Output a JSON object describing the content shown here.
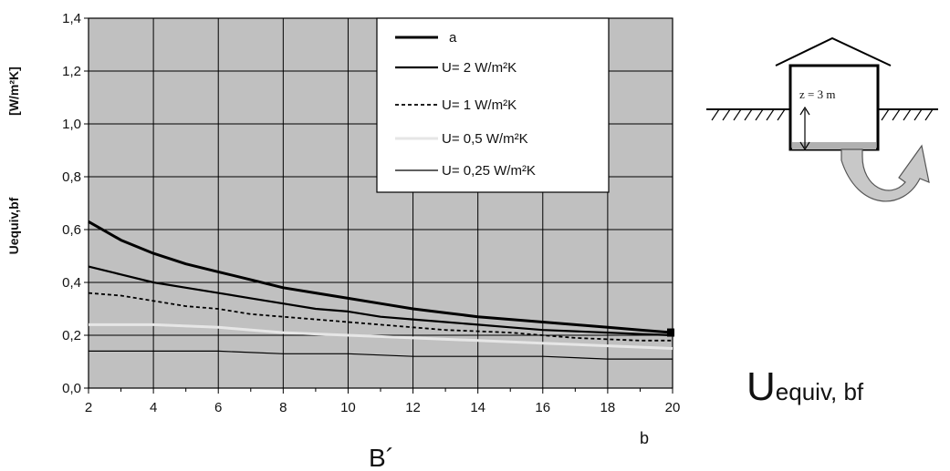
{
  "chart_data": {
    "type": "line",
    "ylabel_main": "Uequiv,bf",
    "ylabel_unit": "[W/m²K]",
    "xlabel": "B´",
    "x_axis_note": "b",
    "xlim": [
      2,
      20
    ],
    "ylim": [
      0,
      1.4
    ],
    "x_ticks": [
      "2",
      "4",
      "6",
      "8",
      "10",
      "12",
      "14",
      "16",
      "18",
      "20"
    ],
    "y_ticks": [
      "0,0",
      "0,2",
      "0,4",
      "0,6",
      "0,8",
      "1,0",
      "1,2",
      "1,4"
    ],
    "grid": true,
    "legend_position": "top-right",
    "series": [
      {
        "name": "a",
        "style": "solid-thick",
        "color": "#000000",
        "x": [
          2,
          3,
          4,
          5,
          6,
          7,
          8,
          9,
          10,
          11,
          12,
          13,
          14,
          15,
          16,
          17,
          18,
          19,
          20
        ],
        "y": [
          0.63,
          0.56,
          0.51,
          0.47,
          0.44,
          0.41,
          0.38,
          0.36,
          0.34,
          0.32,
          0.3,
          0.285,
          0.27,
          0.26,
          0.25,
          0.24,
          0.23,
          0.22,
          0.21
        ]
      },
      {
        "name": "U= 2 W/m²K",
        "style": "solid",
        "color": "#000000",
        "x": [
          2,
          3,
          4,
          5,
          6,
          7,
          8,
          9,
          10,
          11,
          12,
          13,
          14,
          15,
          16,
          17,
          18,
          19,
          20
        ],
        "y": [
          0.46,
          0.43,
          0.4,
          0.38,
          0.36,
          0.34,
          0.32,
          0.3,
          0.29,
          0.27,
          0.26,
          0.25,
          0.24,
          0.23,
          0.22,
          0.215,
          0.21,
          0.205,
          0.2
        ]
      },
      {
        "name": "U= 1 W/m²K",
        "style": "dotted",
        "color": "#000000",
        "x": [
          2,
          3,
          4,
          5,
          6,
          7,
          8,
          9,
          10,
          11,
          12,
          13,
          14,
          15,
          16,
          17,
          18,
          19,
          20
        ],
        "y": [
          0.36,
          0.35,
          0.33,
          0.31,
          0.3,
          0.28,
          0.27,
          0.26,
          0.25,
          0.24,
          0.23,
          0.22,
          0.215,
          0.21,
          0.2,
          0.19,
          0.185,
          0.18,
          0.18
        ]
      },
      {
        "name": "U= 0,5 W/m²K",
        "style": "solid-light",
        "color": "#e6e6e6",
        "x": [
          2,
          4,
          6,
          8,
          10,
          12,
          14,
          16,
          18,
          20
        ],
        "y": [
          0.24,
          0.24,
          0.23,
          0.21,
          0.2,
          0.19,
          0.18,
          0.17,
          0.16,
          0.15
        ]
      },
      {
        "name": "U= 0,25 W/m²K",
        "style": "solid-thin",
        "color": "#000000",
        "x": [
          2,
          4,
          6,
          8,
          10,
          12,
          14,
          16,
          18,
          20
        ],
        "y": [
          0.14,
          0.14,
          0.14,
          0.13,
          0.13,
          0.12,
          0.12,
          0.12,
          0.11,
          0.11
        ]
      }
    ]
  },
  "diagram": {
    "depth_label": "z = 3 m"
  },
  "formula": {
    "main": "U",
    "subscript": "equiv, bf"
  },
  "colors": {
    "plot_background": "#c0c0c0",
    "grid": "#000000"
  }
}
